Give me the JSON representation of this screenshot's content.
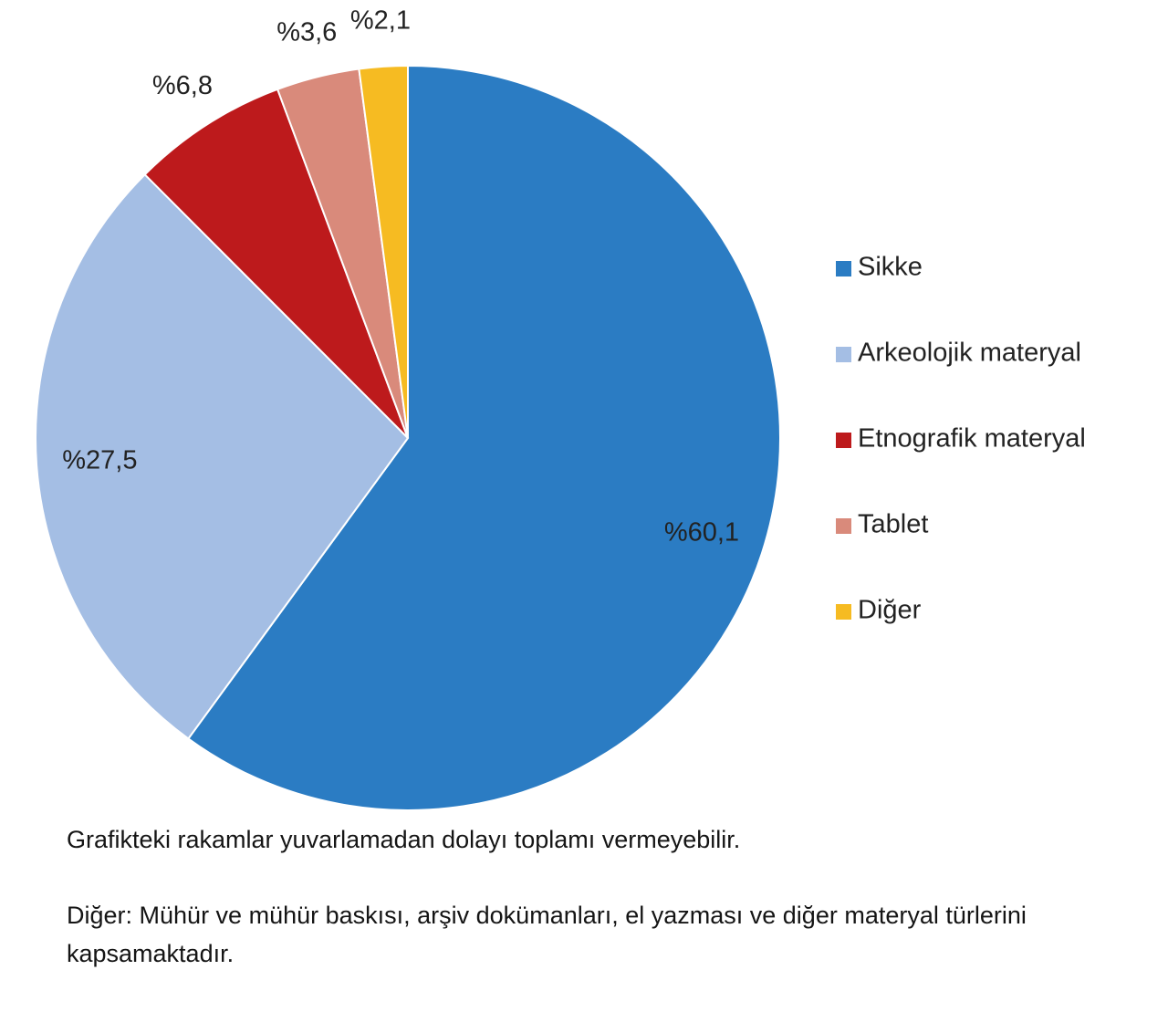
{
  "chart_data": {
    "type": "pie",
    "categories": [
      "Sikke",
      "Arkeolojik materyal",
      "Etnografik materyal",
      "Tablet",
      "Diğer"
    ],
    "values": [
      60.1,
      27.5,
      6.8,
      3.6,
      2.1
    ],
    "value_labels": [
      "%60,1",
      "%27,5",
      "%6,8",
      "%3,6",
      "%2,1"
    ],
    "colors": [
      "#2b7cc3",
      "#a4bee4",
      "#bd1a1c",
      "#d98a7b",
      "#f6bb22"
    ],
    "legend": "right",
    "notes": [
      "Grafikteki rakamlar yuvarlamadan dolayı toplamı vermeyebilir.",
      "Diğer: Mühür ve mühür baskısı, arşiv dokümanları, el yazması ve diğer materyal türlerini kapsamaktadır."
    ]
  }
}
